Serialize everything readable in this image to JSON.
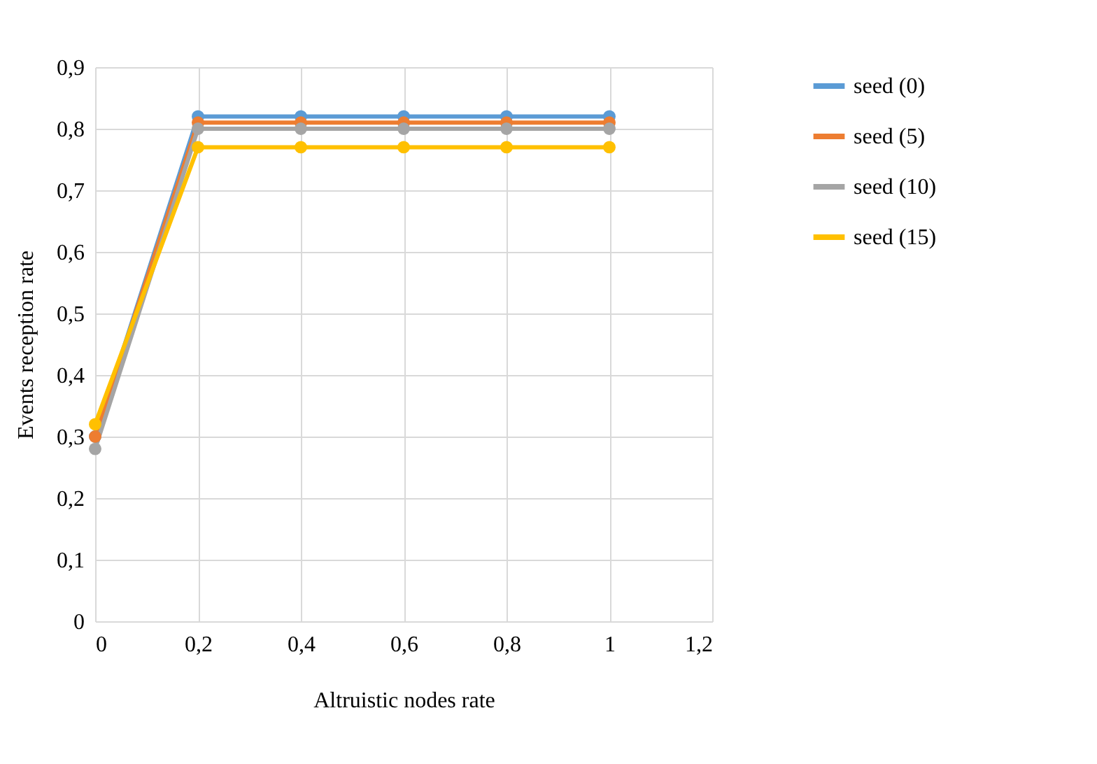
{
  "chart_data": {
    "type": "line",
    "xlabel": "Altruistic nodes rate",
    "ylabel": "Events reception rate",
    "x": [
      0,
      0.2,
      0.4,
      0.6,
      0.8,
      1
    ],
    "series": [
      {
        "name": "seed (0)",
        "color": "#5b9bd5",
        "values": [
          0.3,
          0.82,
          0.82,
          0.82,
          0.82,
          0.82
        ]
      },
      {
        "name": "seed (5)",
        "color": "#ed7d31",
        "values": [
          0.3,
          0.81,
          0.81,
          0.81,
          0.81,
          0.81
        ]
      },
      {
        "name": "seed (10)",
        "color": "#a5a5a5",
        "values": [
          0.28,
          0.8,
          0.8,
          0.8,
          0.8,
          0.8
        ]
      },
      {
        "name": "seed (15)",
        "color": "#ffc000",
        "values": [
          0.32,
          0.77,
          0.77,
          0.77,
          0.77,
          0.77
        ]
      }
    ],
    "xlim": [
      0,
      1.2
    ],
    "xticks": [
      0,
      {
        "value": 0.2,
        "label": "0,2"
      },
      {
        "value": 0.4,
        "label": "0,4"
      },
      {
        "value": 0.6,
        "label": "0,6"
      },
      {
        "value": 0.8,
        "label": "0,8"
      },
      1,
      {
        "value": 1.2,
        "label": "1,2"
      }
    ],
    "ylim": [
      0,
      0.9
    ],
    "yticks": [
      0,
      {
        "value": 0.1,
        "label": "0,1"
      },
      {
        "value": 0.2,
        "label": "0,2"
      },
      {
        "value": 0.3,
        "label": "0,3"
      },
      {
        "value": 0.4,
        "label": "0,4"
      },
      {
        "value": 0.5,
        "label": "0,5"
      },
      {
        "value": 0.6,
        "label": "0,6"
      },
      {
        "value": 0.7,
        "label": "0,7"
      },
      {
        "value": 0.8,
        "label": "0,8"
      },
      {
        "value": 0.9,
        "label": "0,9"
      }
    ],
    "grid": true,
    "legend": "right",
    "marker": "circle",
    "line_style": "solid"
  }
}
